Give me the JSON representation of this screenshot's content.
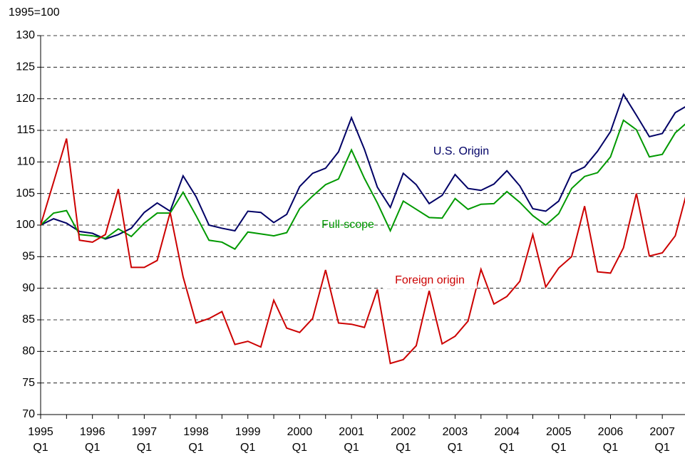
{
  "chart_data": {
    "type": "line",
    "y_label": "1995=100",
    "categories": [
      "1995\nQ1",
      null,
      null,
      null,
      "1996\nQ1",
      null,
      null,
      null,
      "1997\nQ1",
      null,
      null,
      null,
      "1998\nQ1",
      null,
      null,
      null,
      "1999\nQ1",
      null,
      null,
      null,
      "2000\nQ1",
      null,
      null,
      null,
      "2001\nQ1",
      null,
      null,
      null,
      "2002\nQ1",
      null,
      null,
      null,
      "2003\nQ1",
      null,
      null,
      null,
      "2004\nQ1",
      null,
      null,
      null,
      "2005\nQ1",
      null,
      null,
      null,
      "2006\nQ1",
      null,
      null,
      null,
      "2007\nQ1",
      null,
      null
    ],
    "series": [
      {
        "name": "U.S. Origin",
        "color": "#000066",
        "values": [
          100,
          101,
          100.3,
          99,
          98.7,
          97.8,
          98.5,
          99.5,
          102,
          103.5,
          102.2,
          107.8,
          104.5,
          100,
          99.5,
          99.1,
          102.2,
          102,
          100.4,
          101.7,
          106.1,
          108.2,
          109,
          111.6,
          117,
          112,
          106,
          102.8,
          108.2,
          106.4,
          103.4,
          104.7,
          108,
          105.8,
          105.5,
          106.5,
          108.6,
          106.2,
          102.6,
          102.2,
          103.8,
          108.2,
          109.2,
          111.7,
          114.8,
          120.7,
          117.4,
          114,
          114.5,
          117.8,
          119
        ]
      },
      {
        "name": "Full-scope",
        "color": "#009900",
        "values": [
          100,
          101.9,
          102.3,
          98.5,
          98.3,
          97.9,
          99.4,
          98.2,
          100.3,
          101.9,
          101.9,
          105.2,
          101.5,
          97.6,
          97.3,
          96.2,
          98.9,
          98.6,
          98.3,
          98.8,
          102.6,
          104.6,
          106.4,
          107.3,
          111.9,
          107.4,
          103.5,
          99.1,
          103.8,
          102.5,
          101.2,
          101.1,
          104.2,
          102.5,
          103.3,
          103.4,
          105.3,
          103.6,
          101.5,
          100,
          101.8,
          105.8,
          107.7,
          108.3,
          110.8,
          116.6,
          115.1,
          110.8,
          111.2,
          114.6,
          116.4
        ]
      },
      {
        "name": "Foreign origin",
        "color": "#cc0000",
        "values": [
          100,
          106.8,
          113.7,
          97.6,
          97.3,
          98.5,
          105.7,
          93.3,
          93.3,
          94.4,
          102,
          91.8,
          84.5,
          85.2,
          86.3,
          81.1,
          81.6,
          80.7,
          88.1,
          83.7,
          83,
          85.2,
          92.9,
          84.5,
          84.3,
          83.8,
          89.8,
          78.1,
          78.7,
          80.9,
          89.6,
          81.2,
          82.4,
          84.8,
          93,
          87.5,
          88.7,
          91.1,
          98.5,
          90.2,
          93.2,
          95,
          103,
          92.6,
          92.4,
          96.4,
          105,
          95.1,
          95.6,
          98.3,
          106
        ]
      }
    ],
    "ylim": [
      70,
      130
    ],
    "yticks": [
      70,
      75,
      80,
      85,
      90,
      95,
      100,
      105,
      110,
      115,
      120,
      125,
      130
    ],
    "grid": true
  }
}
